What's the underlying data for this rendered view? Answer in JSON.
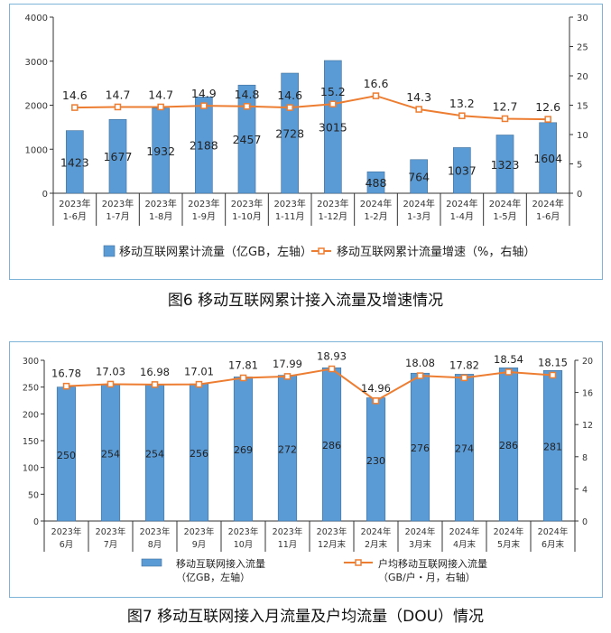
{
  "chart_data": [
    {
      "type": "bar+line",
      "caption": "图6 移动互联网累计接入流量及增速情况",
      "categories": [
        [
          "2023年",
          "1-6月"
        ],
        [
          "2023年",
          "1-7月"
        ],
        [
          "2023年",
          "1-8月"
        ],
        [
          "2023年",
          "1-9月"
        ],
        [
          "2023年",
          "1-10月"
        ],
        [
          "2023年",
          "1-11月"
        ],
        [
          "2023年",
          "1-12月"
        ],
        [
          "2024年",
          "1-2月"
        ],
        [
          "2024年",
          "1-3月"
        ],
        [
          "2024年",
          "1-4月"
        ],
        [
          "2024年",
          "1-5月"
        ],
        [
          "2024年",
          "1-6月"
        ]
      ],
      "bars": {
        "name": "移动互联网累计流量（亿GB，左轴）",
        "values": [
          1423,
          1677,
          1932,
          2188,
          2457,
          2728,
          3015,
          488,
          764,
          1037,
          1323,
          1604
        ],
        "labels": [
          "1423",
          "1677",
          "1932",
          "2188",
          "2457",
          "2728",
          "3015",
          "488",
          "764",
          "1037",
          "1323",
          "1604"
        ],
        "color": "#5b9bd5"
      },
      "line": {
        "name": "移动互联网累计流量增速（%，右轴）",
        "values": [
          14.6,
          14.7,
          14.7,
          14.9,
          14.8,
          14.6,
          15.2,
          16.6,
          14.3,
          13.2,
          12.7,
          12.6
        ],
        "labels": [
          "14.6",
          "14.7",
          "14.7",
          "14.9",
          "14.8",
          "14.6",
          "15.2",
          "16.6",
          "14.3",
          "13.2",
          "12.7",
          "12.6"
        ],
        "color": "#ed7d31"
      },
      "y_left": {
        "min": 0,
        "max": 4000,
        "ticks": [
          "0",
          "1000",
          "2000",
          "3000",
          "4000"
        ]
      },
      "y_right": {
        "min": 0,
        "max": 30,
        "ticks": [
          "0",
          "5",
          "10",
          "15",
          "20",
          "25",
          "30"
        ]
      }
    },
    {
      "type": "bar+line",
      "caption": "图7 移动互联网接入月流量及户均流量（DOU）情况",
      "categories": [
        [
          "2023年",
          "6月"
        ],
        [
          "2023年",
          "7月"
        ],
        [
          "2023年",
          "8月"
        ],
        [
          "2023年",
          "9月"
        ],
        [
          "2023年",
          "10月"
        ],
        [
          "2023年",
          "11月"
        ],
        [
          "2023年",
          "12月末"
        ],
        [
          "2024年",
          "2月末"
        ],
        [
          "2024年",
          "3月末"
        ],
        [
          "2024年",
          "4月末"
        ],
        [
          "2024年",
          "5月末"
        ],
        [
          "2024年",
          "6月末"
        ]
      ],
      "bars": {
        "name_line1": "移动互联网接入流量",
        "name_line2": "（亿GB，左轴）",
        "values": [
          250,
          254,
          254,
          256,
          269,
          272,
          286,
          230,
          276,
          274,
          286,
          281
        ],
        "labels": [
          "250",
          "254",
          "254",
          "256",
          "269",
          "272",
          "286",
          "230",
          "276",
          "274",
          "286",
          "281"
        ],
        "color": "#5b9bd5"
      },
      "line": {
        "name_line1": "户均移动互联网接入流量",
        "name_line2": "（GB/户・月，右轴）",
        "values": [
          16.78,
          17.03,
          16.98,
          17.01,
          17.81,
          17.99,
          18.93,
          14.96,
          18.08,
          17.82,
          18.54,
          18.15
        ],
        "labels": [
          "16.78",
          "17.03",
          "16.98",
          "17.01",
          "17.81",
          "17.99",
          "18.93",
          "14.96",
          "18.08",
          "17.82",
          "18.54",
          "18.15"
        ],
        "color": "#ed7d31"
      },
      "y_left": {
        "min": 0,
        "max": 300,
        "ticks": [
          "0",
          "50",
          "100",
          "150",
          "200",
          "250",
          "300"
        ]
      },
      "y_right": {
        "min": 0,
        "max": 20,
        "ticks": [
          "0",
          "4",
          "8",
          "12",
          "16",
          "20"
        ]
      }
    }
  ]
}
